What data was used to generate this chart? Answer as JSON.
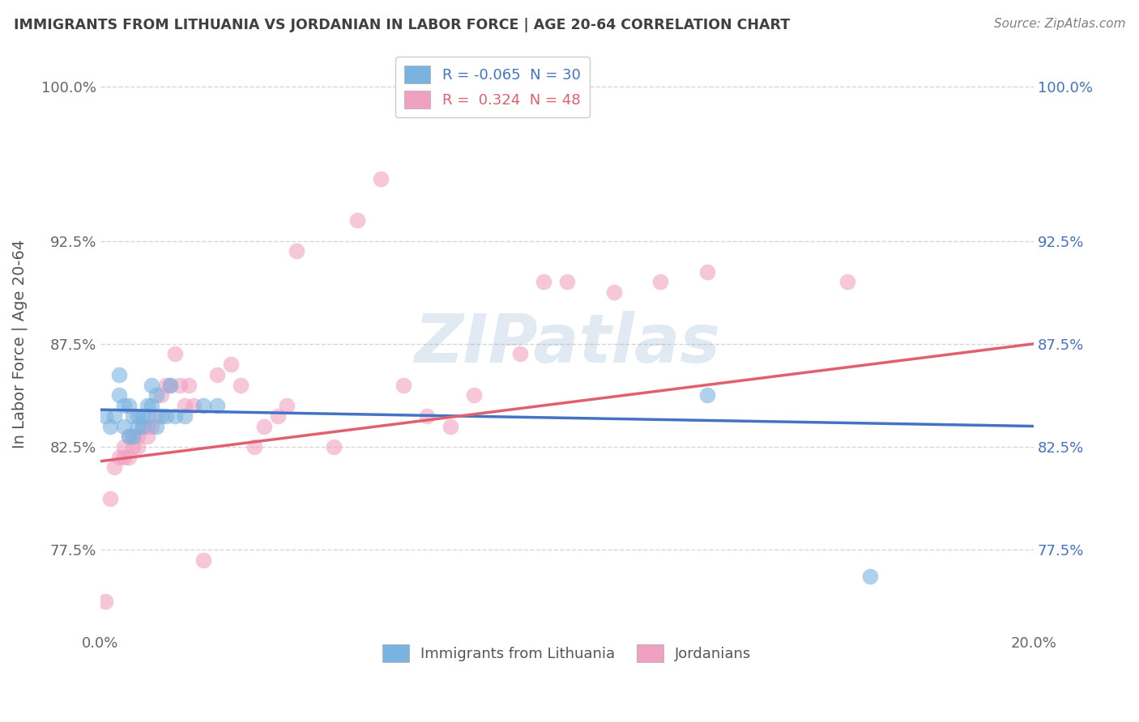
{
  "title": "IMMIGRANTS FROM LITHUANIA VS JORDANIAN IN LABOR FORCE | AGE 20-64 CORRELATION CHART",
  "source": "Source: ZipAtlas.com",
  "xlabel": "",
  "ylabel": "In Labor Force | Age 20-64",
  "xlim": [
    0.0,
    0.2
  ],
  "ylim": [
    0.735,
    1.015
  ],
  "xtick_positions": [
    0.0,
    0.04,
    0.08,
    0.12,
    0.16,
    0.2
  ],
  "xticklabels": [
    "0.0%",
    "",
    "",
    "",
    "",
    "20.0%"
  ],
  "ytick_positions": [
    0.775,
    0.825,
    0.875,
    0.925,
    1.0
  ],
  "ytick_labels": [
    "77.5%",
    "82.5%",
    "87.5%",
    "92.5%",
    "100.0%"
  ],
  "watermark": "ZIPatlas",
  "legend_items": [
    {
      "label": "R = -0.065  N = 30",
      "color": "#a8c8f0"
    },
    {
      "label": "R =  0.324  N = 48",
      "color": "#f0a8c0"
    }
  ],
  "legend_bottom": [
    {
      "label": "Immigrants from Lithuania",
      "color": "#a8c8f0"
    },
    {
      "label": "Jordanians",
      "color": "#f0a8c0"
    }
  ],
  "blue_scatter_x": [
    0.001,
    0.002,
    0.003,
    0.004,
    0.004,
    0.005,
    0.005,
    0.006,
    0.006,
    0.007,
    0.007,
    0.008,
    0.008,
    0.009,
    0.009,
    0.01,
    0.01,
    0.011,
    0.011,
    0.012,
    0.012,
    0.013,
    0.014,
    0.015,
    0.016,
    0.018,
    0.022,
    0.025,
    0.13,
    0.165
  ],
  "blue_scatter_y": [
    0.84,
    0.835,
    0.84,
    0.86,
    0.85,
    0.845,
    0.835,
    0.83,
    0.845,
    0.84,
    0.83,
    0.84,
    0.835,
    0.835,
    0.84,
    0.84,
    0.845,
    0.855,
    0.845,
    0.835,
    0.85,
    0.84,
    0.84,
    0.855,
    0.84,
    0.84,
    0.845,
    0.845,
    0.85,
    0.762
  ],
  "pink_scatter_x": [
    0.001,
    0.002,
    0.003,
    0.004,
    0.005,
    0.005,
    0.006,
    0.006,
    0.007,
    0.007,
    0.008,
    0.008,
    0.009,
    0.01,
    0.01,
    0.011,
    0.012,
    0.013,
    0.014,
    0.015,
    0.016,
    0.017,
    0.018,
    0.019,
    0.02,
    0.022,
    0.025,
    0.028,
    0.03,
    0.033,
    0.035,
    0.038,
    0.04,
    0.042,
    0.05,
    0.055,
    0.06,
    0.065,
    0.07,
    0.075,
    0.08,
    0.09,
    0.095,
    0.1,
    0.11,
    0.12,
    0.13,
    0.16
  ],
  "pink_scatter_y": [
    0.75,
    0.8,
    0.815,
    0.82,
    0.82,
    0.825,
    0.82,
    0.83,
    0.825,
    0.83,
    0.825,
    0.83,
    0.835,
    0.83,
    0.835,
    0.835,
    0.84,
    0.85,
    0.855,
    0.855,
    0.87,
    0.855,
    0.845,
    0.855,
    0.845,
    0.77,
    0.86,
    0.865,
    0.855,
    0.825,
    0.835,
    0.84,
    0.845,
    0.92,
    0.825,
    0.935,
    0.955,
    0.855,
    0.84,
    0.835,
    0.85,
    0.87,
    0.905,
    0.905,
    0.9,
    0.905,
    0.91,
    0.905
  ],
  "blue_line_x": [
    0.0,
    0.2
  ],
  "blue_line_y": [
    0.843,
    0.835
  ],
  "pink_line_x": [
    0.0,
    0.2
  ],
  "pink_line_y": [
    0.818,
    0.875
  ],
  "blue_color": "#7ab3e0",
  "pink_color": "#f0a0c0",
  "blue_line_color": "#4472c4",
  "pink_line_color": "#e06070",
  "background_color": "#ffffff",
  "grid_color": "#cccccc",
  "title_color": "#404040",
  "source_color": "#808080"
}
